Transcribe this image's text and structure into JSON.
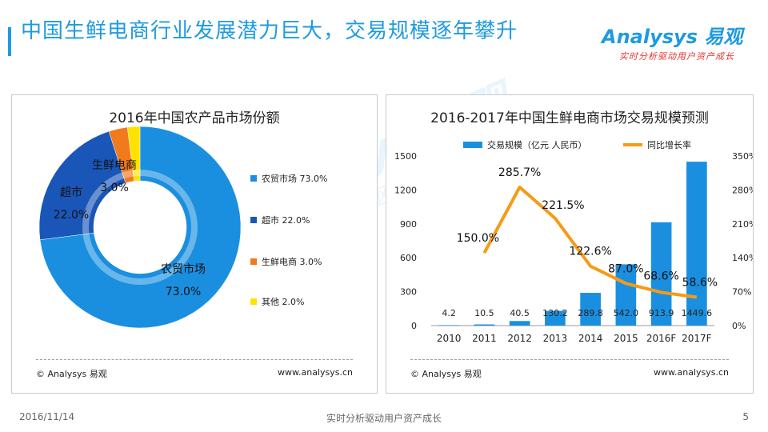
{
  "header": {
    "title": "中国生鲜电商行业发展潜力巨大，交易规模逐年攀升",
    "logo_text": "Analysys 易观",
    "logo_tagline": "实时分析驱动用户资产成长"
  },
  "left_panel": {
    "title": "2016年中国农产品市场份额",
    "footer_left": "© Analysys 易观",
    "footer_right": "www.analysys.cn"
  },
  "right_panel": {
    "title": "2016-2017年中国生鲜电商市场交易规模预测",
    "footer_left": "© Analysys 易观",
    "footer_right": "www.analysys.cn"
  },
  "watermark": {
    "main": "Analysys 易观",
    "tagline": "实时分析驱动用户资产成长"
  },
  "footer": {
    "date": "2016/11/14",
    "center": "实时分析驱动用户资产成长",
    "page": "5"
  },
  "colors": {
    "brand_blue": "#1f9ae0",
    "agri_market": "#1a8fe0",
    "supermarket": "#1a56b8",
    "fresh_ecom": "#f07a1c",
    "other": "#ffe200",
    "bar": "#1a8fe0",
    "line": "#f59b16"
  },
  "chart_data": [
    {
      "type": "pie",
      "style": "donut",
      "title": "2016年中国农产品市场份额",
      "slices": [
        {
          "name": "农贸市场",
          "value": 73.0,
          "label": "73.0%",
          "legend": "农贸市场  73.0%",
          "color": "#1a8fe0"
        },
        {
          "name": "超市",
          "value": 22.0,
          "label": "22.0%",
          "legend": "超市  22.0%",
          "color": "#1a56b8"
        },
        {
          "name": "生鲜电商",
          "value": 3.0,
          "label": "3.0%",
          "legend": "生鲜电商  3.0%",
          "color": "#f07a1c"
        },
        {
          "name": "其他",
          "value": 2.0,
          "label": "",
          "legend": "其他  2.0%",
          "color": "#ffe200"
        }
      ]
    },
    {
      "type": "bar+line",
      "title": "2016-2017年中国生鲜电商市场交易规模预测",
      "categories": [
        "2010",
        "2011",
        "2012",
        "2013",
        "2014",
        "2015",
        "2016F",
        "2017F"
      ],
      "series": [
        {
          "name": "交易规模（亿元 人民币）",
          "type": "bar",
          "axis": "left",
          "values": [
            4.2,
            10.5,
            40.5,
            130.2,
            289.8,
            542.0,
            913.9,
            1449.6
          ],
          "labels": [
            "4.2",
            "10.5",
            "40.5",
            "130.2",
            "289.8",
            "542.0",
            "913.9",
            "1449.6"
          ]
        },
        {
          "name": "同比增长率",
          "type": "line",
          "axis": "right",
          "values": [
            null,
            150.0,
            285.7,
            221.5,
            122.6,
            87.0,
            68.6,
            58.6
          ],
          "labels": [
            "",
            "150.0%",
            "285.7%",
            "221.5%",
            "122.6%",
            "87.0%",
            "68.6%",
            "58.6%"
          ]
        }
      ],
      "y_left": {
        "min": 0,
        "max": 1500,
        "ticks": [
          "0",
          "300",
          "600",
          "900",
          "1200",
          "1500"
        ],
        "tick_values": [
          0,
          300,
          600,
          900,
          1200,
          1500
        ]
      },
      "y_right": {
        "min": 0,
        "max": 350,
        "ticks": [
          "0%",
          "70%",
          "140%",
          "210%",
          "280%",
          "350%"
        ],
        "tick_values": [
          0,
          70,
          140,
          210,
          280,
          350
        ]
      },
      "legend_position": "top"
    }
  ]
}
